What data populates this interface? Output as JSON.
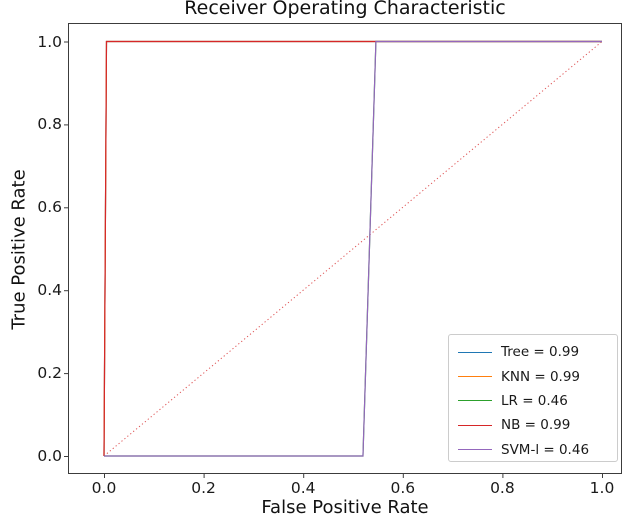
{
  "chart_data": {
    "type": "line",
    "title": "Receiver Operating Characteristic",
    "xlabel": "False Positive Rate",
    "ylabel": "True Positive Rate",
    "xlim": [
      -0.07,
      1.04
    ],
    "ylim": [
      -0.04,
      1.04
    ],
    "xticks": [
      0.0,
      0.2,
      0.4,
      0.6,
      0.8,
      1.0
    ],
    "xtick_labels": [
      "0.0",
      "0.2",
      "0.4",
      "0.6",
      "0.8",
      "1.0"
    ],
    "yticks": [
      0.0,
      0.2,
      0.4,
      0.6,
      0.8,
      1.0
    ],
    "ytick_labels": [
      "0.0",
      "0.2",
      "0.4",
      "0.6",
      "0.8",
      "1.0"
    ],
    "grid": false,
    "legend_position": "lower right",
    "series": [
      {
        "name": "Tree",
        "auc": 0.99,
        "label": "Tree = 0.99",
        "color": "#1f77b4",
        "x": [
          0,
          0.005,
          1
        ],
        "y": [
          0,
          1,
          1
        ]
      },
      {
        "name": "KNN",
        "auc": 0.99,
        "label": "KNN = 0.99",
        "color": "#ff7f0e",
        "x": [
          0,
          0.005,
          1
        ],
        "y": [
          0,
          1,
          1
        ]
      },
      {
        "name": "LR",
        "auc": 0.46,
        "label": "LR = 0.46",
        "color": "#2ca02c",
        "x": [
          0,
          0.52,
          0.546,
          1
        ],
        "y": [
          0,
          0,
          1,
          1
        ]
      },
      {
        "name": "NB",
        "auc": 0.99,
        "label": "NB = 0.99",
        "color": "#d62728",
        "x": [
          0,
          0.005,
          1
        ],
        "y": [
          0,
          1,
          1
        ]
      },
      {
        "name": "SVM-l",
        "auc": 0.46,
        "label": "SVM-l = 0.46",
        "color": "#9467bd",
        "x": [
          0,
          0.52,
          0.546,
          1
        ],
        "y": [
          0,
          0,
          1,
          1
        ]
      }
    ],
    "reference_line": {
      "x": [
        0,
        1
      ],
      "y": [
        0,
        1
      ],
      "color": "#d62728",
      "linestyle": "dotted"
    }
  }
}
